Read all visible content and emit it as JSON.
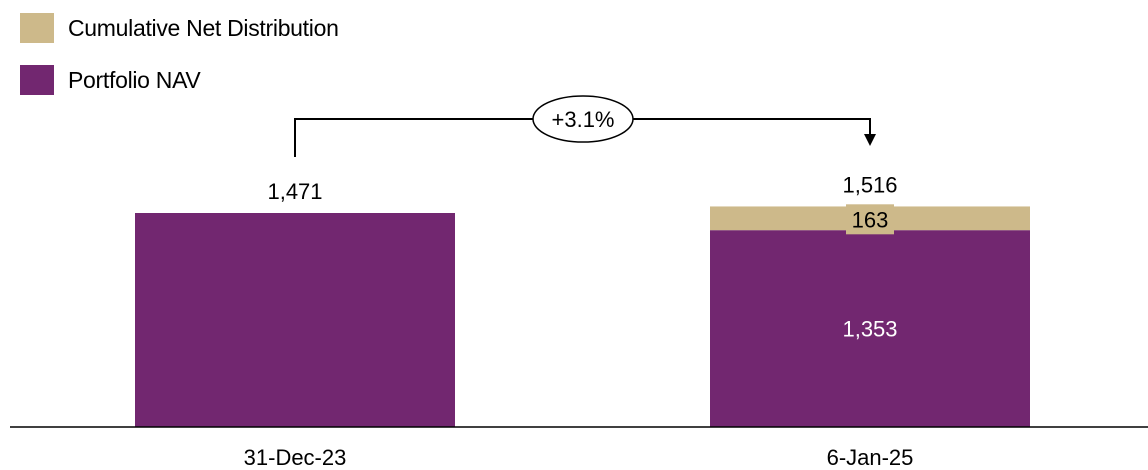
{
  "chart_data": {
    "type": "bar",
    "stacked": true,
    "categories": [
      "31-Dec-23",
      "6-Jan-25"
    ],
    "series": [
      {
        "name": "Portfolio NAV",
        "color": "#722770",
        "values": [
          1471,
          1353
        ]
      },
      {
        "name": "Cumulative Net Distribution",
        "color": "#CDB98A",
        "values": [
          0,
          163
        ]
      }
    ],
    "totals": [
      "1,471",
      "1,516"
    ],
    "segment_labels": [
      {
        "category": 1,
        "series": 1,
        "text": "163"
      },
      {
        "category": 1,
        "series": 0,
        "text": "1,353"
      }
    ],
    "annotation": {
      "text": "+3.1%",
      "from_category": 0,
      "to_category": 1
    },
    "ylim": [
      0,
      1600
    ],
    "grid": false,
    "y_axis_visible": false,
    "legend_position": "top-left",
    "legend_order": [
      "Cumulative Net Distribution",
      "Portfolio NAV"
    ]
  }
}
